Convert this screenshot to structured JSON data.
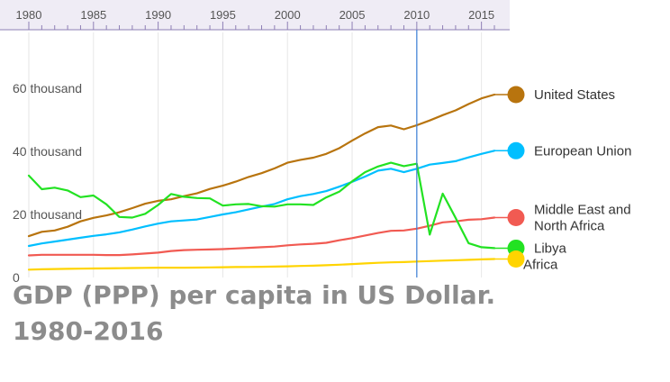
{
  "chart_data": {
    "type": "line",
    "title_lines": [
      "GDP (PPP) per capita in US Dollar.",
      "1980-2016"
    ],
    "xlim": [
      1980,
      2016
    ],
    "ylim": [
      0,
      72000
    ],
    "x_ticks": [
      1980,
      1985,
      1990,
      1995,
      2000,
      2005,
      2010,
      2015
    ],
    "x_tick_labels": [
      "1980",
      "1985",
      "1990",
      "1995",
      "2000",
      "2005",
      "2010",
      "2015"
    ],
    "y_ticks": [
      0,
      20000,
      40000,
      60000
    ],
    "y_tick_labels": [
      "0",
      "20 thousand",
      "40 thousand",
      "60 thousand"
    ],
    "grid": true,
    "time_cursor": 2010,
    "x": [
      1980,
      1981,
      1982,
      1983,
      1984,
      1985,
      1986,
      1987,
      1988,
      1989,
      1990,
      1991,
      1992,
      1993,
      1994,
      1995,
      1996,
      1997,
      1998,
      1999,
      2000,
      2001,
      2002,
      2003,
      2004,
      2005,
      2006,
      2007,
      2008,
      2009,
      2010,
      2011,
      2012,
      2013,
      2014,
      2015,
      2016
    ],
    "series": [
      {
        "name": "United States",
        "color": "#b8740e",
        "values": [
          13100,
          14500,
          14900,
          16100,
          17800,
          18900,
          19700,
          20700,
          22000,
          23400,
          24300,
          24800,
          25800,
          26700,
          28100,
          29100,
          30400,
          31900,
          33100,
          34600,
          36400,
          37300,
          38000,
          39200,
          41000,
          43400,
          45700,
          47700,
          48200,
          47000,
          48300,
          49800,
          51500,
          53000,
          55000,
          56800,
          58000
        ]
      },
      {
        "name": "European Union",
        "color": "#00bfff",
        "values": [
          10000,
          10800,
          11400,
          12000,
          12600,
          13200,
          13700,
          14300,
          15200,
          16200,
          17100,
          17800,
          18100,
          18400,
          19200,
          20000,
          20700,
          21600,
          22500,
          23300,
          24800,
          25800,
          26500,
          27400,
          28800,
          30300,
          32000,
          33900,
          34500,
          33400,
          34500,
          35800,
          36300,
          36900,
          38100,
          39200,
          40200
        ]
      },
      {
        "name": "Middle East and North Africa",
        "color": "#f15a52",
        "values": [
          7000,
          7200,
          7200,
          7200,
          7200,
          7200,
          7100,
          7100,
          7300,
          7600,
          7900,
          8400,
          8700,
          8800,
          8900,
          9000,
          9200,
          9400,
          9600,
          9800,
          10200,
          10500,
          10700,
          11000,
          11800,
          12500,
          13300,
          14100,
          14800,
          14900,
          15500,
          16400,
          17500,
          17800,
          18300,
          18500,
          19000
        ]
      },
      {
        "name": "Libya",
        "color": "#22e222",
        "values": [
          32300,
          28000,
          28500,
          27600,
          25500,
          26000,
          23200,
          19200,
          19000,
          20200,
          23000,
          26500,
          25600,
          25200,
          25100,
          22800,
          23200,
          23300,
          22600,
          22500,
          23200,
          23200,
          23000,
          25400,
          27200,
          30500,
          33400,
          35200,
          36400,
          35300,
          36100,
          13600,
          26600,
          18900,
          10900,
          9600,
          9300
        ]
      },
      {
        "name": "Africa",
        "color": "#ffd400",
        "values": [
          2500,
          2600,
          2700,
          2750,
          2800,
          2850,
          2900,
          2950,
          3000,
          3050,
          3100,
          3100,
          3100,
          3150,
          3200,
          3250,
          3300,
          3350,
          3400,
          3450,
          3550,
          3650,
          3750,
          3900,
          4050,
          4250,
          4450,
          4650,
          4800,
          4900,
          5050,
          5200,
          5350,
          5450,
          5600,
          5750,
          5850
        ]
      }
    ]
  }
}
